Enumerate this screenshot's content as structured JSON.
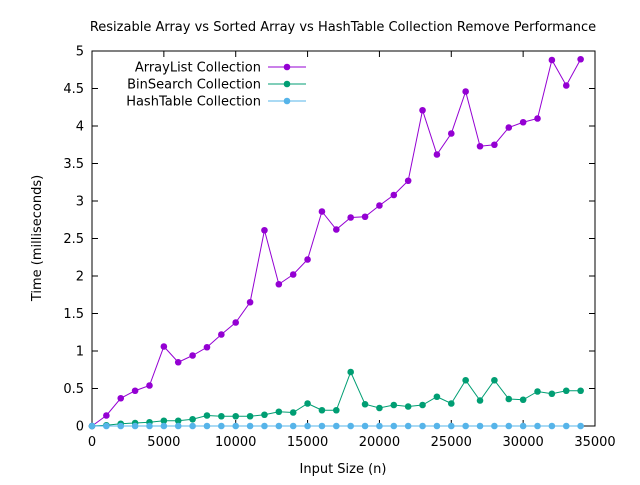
{
  "chart_data": {
    "type": "line",
    "title": "Resizable Array vs Sorted Array vs HashTable Collection Remove Performance",
    "xlabel": "Input Size (n)",
    "ylabel": "Time (milliseconds)",
    "xlim": [
      0,
      35000
    ],
    "ylim": [
      0,
      5
    ],
    "x_ticks": [
      0,
      5000,
      10000,
      15000,
      20000,
      25000,
      30000,
      35000
    ],
    "y_ticks": [
      0,
      0.5,
      1,
      1.5,
      2,
      2.5,
      3,
      3.5,
      4,
      4.5,
      5
    ],
    "x_tick_labels": [
      "0",
      "5000",
      "10000",
      "15000",
      "20000",
      "25000",
      "30000",
      "35000"
    ],
    "y_tick_labels": [
      "0",
      "0.5",
      "1",
      "1.5",
      "2",
      "2.5",
      "3",
      "3.5",
      "4",
      "4.5",
      "5"
    ],
    "grid": false,
    "legend_position": "top-left",
    "x": [
      0,
      1000,
      2000,
      3000,
      4000,
      5000,
      6000,
      7000,
      8000,
      9000,
      10000,
      11000,
      12000,
      13000,
      14000,
      15000,
      16000,
      17000,
      18000,
      19000,
      20000,
      21000,
      22000,
      23000,
      24000,
      25000,
      26000,
      27000,
      28000,
      29000,
      30000,
      31000,
      32000,
      33000,
      34000
    ],
    "series": [
      {
        "name": "ArrayList Collection",
        "color": "#9400d3",
        "values": [
          0.0,
          0.14,
          0.37,
          0.47,
          0.54,
          1.06,
          0.85,
          0.94,
          1.05,
          1.22,
          1.38,
          1.65,
          2.61,
          1.89,
          2.02,
          2.22,
          2.86,
          2.62,
          2.78,
          2.79,
          2.94,
          3.08,
          3.27,
          4.21,
          3.62,
          3.9,
          4.46,
          3.73,
          3.75,
          3.98,
          4.05,
          4.1,
          4.88,
          4.54,
          4.89
        ]
      },
      {
        "name": "BinSearch Collection",
        "color": "#009e73",
        "values": [
          0.0,
          0.01,
          0.03,
          0.04,
          0.05,
          0.07,
          0.07,
          0.09,
          0.14,
          0.13,
          0.13,
          0.13,
          0.15,
          0.19,
          0.18,
          0.3,
          0.21,
          0.21,
          0.72,
          0.29,
          0.24,
          0.28,
          0.26,
          0.28,
          0.39,
          0.3,
          0.61,
          0.34,
          0.61,
          0.36,
          0.35,
          0.46,
          0.43,
          0.47,
          0.47
        ]
      },
      {
        "name": "HashTable Collection",
        "color": "#56b4e9",
        "values": [
          0.0,
          0.0,
          0.0,
          0.0,
          0.0,
          0.0,
          0.0,
          0.0,
          0.0,
          0.0,
          0.0,
          0.0,
          0.0,
          0.0,
          0.0,
          0.0,
          0.0,
          0.0,
          0.0,
          0.0,
          0.0,
          0.0,
          0.0,
          0.0,
          0.0,
          0.0,
          0.0,
          0.0,
          0.0,
          0.0,
          0.0,
          0.0,
          0.0,
          0.0,
          0.0
        ]
      }
    ]
  }
}
